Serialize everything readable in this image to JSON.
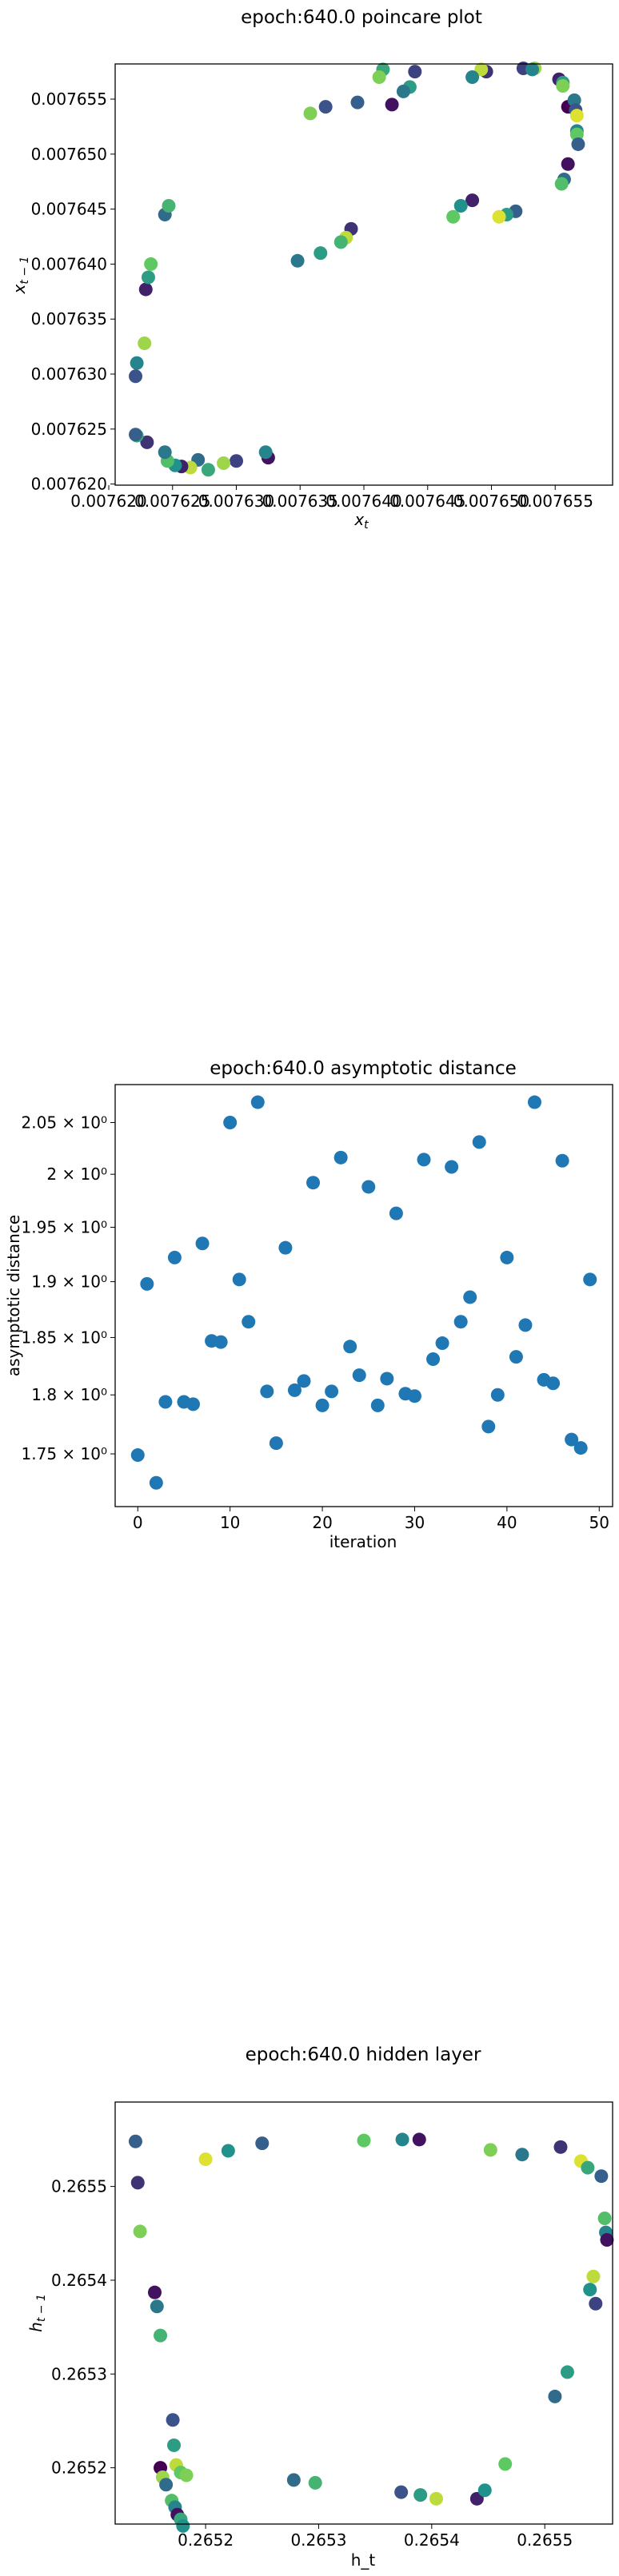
{
  "chart_data": [
    {
      "type": "scatter",
      "title": "epoch:640.0 poincare plot",
      "xlabel": "x_t",
      "ylabel": "x_{t-1}",
      "xlim": [
        0.0076205,
        0.0076595
      ],
      "ylim": [
        0.0076199,
        0.0076582
      ],
      "x_ticks": [
        0.00762,
        0.007625,
        0.00763,
        0.007635,
        0.00764,
        0.007645,
        0.00765,
        0.007655
      ],
      "x_tick_labels": [
        "0.007620",
        "0.007625",
        "0.007630",
        "0.007635",
        "0.007640",
        "0.007645",
        "0.007650",
        "0.007655"
      ],
      "y_ticks": [
        0.00762,
        0.007625,
        0.00763,
        0.007635,
        0.00764,
        0.007645,
        0.00765,
        0.007655
      ],
      "y_tick_labels": [
        "0.007620",
        "0.007625",
        "0.007630",
        "0.007635",
        "0.007640",
        "0.007645",
        "0.007650",
        "0.007655"
      ],
      "colormap": "viridis",
      "points": [
        {
          "x": 0.007656,
          "y": 0.0076543,
          "c": 0.0
        },
        {
          "x": 0.0076565,
          "y": 0.0076549,
          "c": 0.4
        },
        {
          "x": 0.0076566,
          "y": 0.007654,
          "c": 0.25
        },
        {
          "x": 0.0076567,
          "y": 0.0076535,
          "c": 0.95
        },
        {
          "x": 0.0076567,
          "y": 0.0076521,
          "c": 0.45
        },
        {
          "x": 0.0076567,
          "y": 0.0076518,
          "c": 0.75
        },
        {
          "x": 0.0076568,
          "y": 0.0076509,
          "c": 0.3
        },
        {
          "x": 0.007656,
          "y": 0.0076491,
          "c": 0.05
        },
        {
          "x": 0.0076557,
          "y": 0.0076477,
          "c": 0.35
        },
        {
          "x": 0.0076555,
          "y": 0.0076473,
          "c": 0.7
        },
        {
          "x": 0.0076553,
          "y": 0.0076568,
          "c": 0.1
        },
        {
          "x": 0.0076556,
          "y": 0.0076565,
          "c": 0.55
        },
        {
          "x": 0.0076556,
          "y": 0.0076562,
          "c": 0.8
        },
        {
          "x": 0.0076525,
          "y": 0.0076578,
          "c": 0.2
        },
        {
          "x": 0.0076534,
          "y": 0.0076578,
          "c": 0.85
        },
        {
          "x": 0.0076532,
          "y": 0.0076577,
          "c": 0.45
        },
        {
          "x": 0.0076519,
          "y": 0.0076448,
          "c": 0.3
        },
        {
          "x": 0.0076512,
          "y": 0.0076445,
          "c": 0.55
        },
        {
          "x": 0.0076506,
          "y": 0.0076443,
          "c": 0.95
        },
        {
          "x": 0.0076496,
          "y": 0.0076575,
          "c": 0.15
        },
        {
          "x": 0.0076492,
          "y": 0.0076577,
          "c": 0.9
        },
        {
          "x": 0.0076485,
          "y": 0.007657,
          "c": 0.45
        },
        {
          "x": 0.0076485,
          "y": 0.0076458,
          "c": 0.1
        },
        {
          "x": 0.0076476,
          "y": 0.0076453,
          "c": 0.5
        },
        {
          "x": 0.007647,
          "y": 0.0076443,
          "c": 0.75
        },
        {
          "x": 0.007644,
          "y": 0.0076575,
          "c": 0.2
        },
        {
          "x": 0.0076436,
          "y": 0.0076561,
          "c": 0.55
        },
        {
          "x": 0.0076431,
          "y": 0.0076557,
          "c": 0.4
        },
        {
          "x": 0.0076422,
          "y": 0.0076545,
          "c": 0.05
        },
        {
          "x": 0.0076415,
          "y": 0.0076577,
          "c": 0.6
        },
        {
          "x": 0.0076412,
          "y": 0.007657,
          "c": 0.8
        },
        {
          "x": 0.0076395,
          "y": 0.0076547,
          "c": 0.3
        },
        {
          "x": 0.007639,
          "y": 0.0076432,
          "c": 0.15
        },
        {
          "x": 0.0076386,
          "y": 0.0076424,
          "c": 0.9
        },
        {
          "x": 0.0076382,
          "y": 0.007642,
          "c": 0.65
        },
        {
          "x": 0.007637,
          "y": 0.0076543,
          "c": 0.25
        },
        {
          "x": 0.0076366,
          "y": 0.007641,
          "c": 0.55
        },
        {
          "x": 0.0076358,
          "y": 0.0076537,
          "c": 0.8
        },
        {
          "x": 0.0076348,
          "y": 0.0076403,
          "c": 0.4
        },
        {
          "x": 0.0076325,
          "y": 0.0076224,
          "c": 0.05
        },
        {
          "x": 0.0076323,
          "y": 0.0076229,
          "c": 0.45
        },
        {
          "x": 0.00763,
          "y": 0.0076221,
          "c": 0.2
        },
        {
          "x": 0.007629,
          "y": 0.0076219,
          "c": 0.85
        },
        {
          "x": 0.0076278,
          "y": 0.0076213,
          "c": 0.6
        },
        {
          "x": 0.007627,
          "y": 0.0076222,
          "c": 0.35
        },
        {
          "x": 0.0076264,
          "y": 0.0076215,
          "c": 0.9
        },
        {
          "x": 0.0076257,
          "y": 0.0076216,
          "c": 0.1
        },
        {
          "x": 0.0076252,
          "y": 0.0076217,
          "c": 0.5
        },
        {
          "x": 0.0076246,
          "y": 0.0076221,
          "c": 0.7
        },
        {
          "x": 0.0076244,
          "y": 0.0076229,
          "c": 0.4
        },
        {
          "x": 0.007623,
          "y": 0.0076238,
          "c": 0.15
        },
        {
          "x": 0.0076222,
          "y": 0.0076244,
          "c": 0.6
        },
        {
          "x": 0.0076221,
          "y": 0.0076245,
          "c": 0.3
        },
        {
          "x": 0.0076228,
          "y": 0.0076328,
          "c": 0.85
        },
        {
          "x": 0.0076222,
          "y": 0.007631,
          "c": 0.45
        },
        {
          "x": 0.0076221,
          "y": 0.0076298,
          "c": 0.25
        },
        {
          "x": 0.0076229,
          "y": 0.0076377,
          "c": 0.1
        },
        {
          "x": 0.0076231,
          "y": 0.0076388,
          "c": 0.55
        },
        {
          "x": 0.0076233,
          "y": 0.00764,
          "c": 0.75
        },
        {
          "x": 0.0076244,
          "y": 0.0076445,
          "c": 0.35
        },
        {
          "x": 0.0076247,
          "y": 0.0076453,
          "c": 0.65
        }
      ]
    },
    {
      "type": "scatter",
      "title": "epoch:640.0 asymptotic distance",
      "xlabel": "iteration",
      "ylabel": "asymptotic distance",
      "xlim": [
        -2.45,
        51.45
      ],
      "ylim": [
        1.7065,
        2.0875
      ],
      "y_scale": "log",
      "x_ticks": [
        0,
        10,
        20,
        30,
        40,
        50
      ],
      "x_tick_labels": [
        "0",
        "10",
        "20",
        "30",
        "40",
        "50"
      ],
      "y_ticks": [
        1.75,
        1.8,
        1.85,
        1.9,
        1.95,
        2.0,
        2.05
      ],
      "y_tick_labels": [
        "1.75 × 10⁰",
        "1.8 × 10⁰",
        "1.85 × 10⁰",
        "1.9 × 10⁰",
        "1.95 × 10⁰",
        "2 × 10⁰",
        "2.05 × 10⁰"
      ],
      "color": "#1f77b4",
      "x": [
        0,
        1,
        2,
        3,
        4,
        5,
        6,
        7,
        8,
        9,
        10,
        11,
        12,
        13,
        14,
        15,
        16,
        17,
        18,
        19,
        20,
        21,
        22,
        23,
        24,
        25,
        26,
        27,
        28,
        29,
        30,
        31,
        32,
        33,
        34,
        35,
        36,
        37,
        38,
        39,
        40,
        41,
        42,
        43,
        44,
        45,
        46,
        47,
        48,
        49
      ],
      "y": [
        1.749,
        1.898,
        1.726,
        1.794,
        1.922,
        1.794,
        1.792,
        1.935,
        1.847,
        1.846,
        2.05,
        1.902,
        1.864,
        2.07,
        1.803,
        1.759,
        1.931,
        1.804,
        1.812,
        1.992,
        1.791,
        1.803,
        2.016,
        1.842,
        1.817,
        1.988,
        1.791,
        1.814,
        1.963,
        1.801,
        1.799,
        2.014,
        1.831,
        1.845,
        2.007,
        1.864,
        1.886,
        2.031,
        1.773,
        1.8,
        1.922,
        1.833,
        1.861,
        2.07,
        1.813,
        1.81,
        2.013,
        1.762,
        1.755,
        1.902
      ]
    },
    {
      "type": "scatter",
      "title": "epoch:640.0 hidden layer",
      "xlabel": "h_t",
      "ylabel": "h_{t-1}",
      "xlim": [
        0.26512,
        0.26556
      ],
      "ylim": [
        0.26514,
        0.26559
      ],
      "x_ticks": [
        0.2652,
        0.2653,
        0.2654,
        0.2655
      ],
      "x_tick_labels": [
        "0.2652",
        "0.2653",
        "0.2654",
        "0.2655"
      ],
      "y_ticks": [
        0.2652,
        0.2653,
        0.2654,
        0.2655
      ],
      "y_tick_labels": [
        "0.2652",
        "0.2653",
        "0.2654",
        "0.2655"
      ],
      "colormap": "viridis",
      "points": [
        {
          "x": 0.265138,
          "y": 0.265548,
          "c": 0.3
        },
        {
          "x": 0.26514,
          "y": 0.265504,
          "c": 0.15
        },
        {
          "x": 0.265142,
          "y": 0.265452,
          "c": 0.8
        },
        {
          "x": 0.265155,
          "y": 0.265387,
          "c": 0.05
        },
        {
          "x": 0.265157,
          "y": 0.265372,
          "c": 0.4
        },
        {
          "x": 0.26516,
          "y": 0.265341,
          "c": 0.65
        },
        {
          "x": 0.265171,
          "y": 0.265251,
          "c": 0.25
        },
        {
          "x": 0.265172,
          "y": 0.265224,
          "c": 0.55
        },
        {
          "x": 0.265174,
          "y": 0.265203,
          "c": 0.9
        },
        {
          "x": 0.265178,
          "y": 0.265195,
          "c": 0.75
        },
        {
          "x": 0.26516,
          "y": 0.2652,
          "c": 0.0
        },
        {
          "x": 0.265162,
          "y": 0.26519,
          "c": 0.85
        },
        {
          "x": 0.265165,
          "y": 0.265182,
          "c": 0.35
        },
        {
          "x": 0.26517,
          "y": 0.265165,
          "c": 0.7
        },
        {
          "x": 0.265173,
          "y": 0.265158,
          "c": 0.45
        },
        {
          "x": 0.265175,
          "y": 0.26515,
          "c": 0.05
        },
        {
          "x": 0.265178,
          "y": 0.265145,
          "c": 0.6
        },
        {
          "x": 0.26518,
          "y": 0.265138,
          "c": 0.5
        },
        {
          "x": 0.265183,
          "y": 0.265192,
          "c": 0.8
        },
        {
          "x": 0.2652,
          "y": 0.265529,
          "c": 0.95
        },
        {
          "x": 0.26522,
          "y": 0.265538,
          "c": 0.5
        },
        {
          "x": 0.26525,
          "y": 0.265546,
          "c": 0.3
        },
        {
          "x": 0.265278,
          "y": 0.265187,
          "c": 0.35
        },
        {
          "x": 0.265297,
          "y": 0.265184,
          "c": 0.65
        },
        {
          "x": 0.26534,
          "y": 0.265549,
          "c": 0.75
        },
        {
          "x": 0.265373,
          "y": 0.265174,
          "c": 0.25
        },
        {
          "x": 0.265374,
          "y": 0.26555,
          "c": 0.45
        },
        {
          "x": 0.265389,
          "y": 0.26555,
          "c": 0.05
        },
        {
          "x": 0.26539,
          "y": 0.265171,
          "c": 0.55
        },
        {
          "x": 0.265404,
          "y": 0.265167,
          "c": 0.9
        },
        {
          "x": 0.26544,
          "y": 0.265167,
          "c": 0.1
        },
        {
          "x": 0.265447,
          "y": 0.265176,
          "c": 0.5
        },
        {
          "x": 0.265452,
          "y": 0.265539,
          "c": 0.8
        },
        {
          "x": 0.265465,
          "y": 0.265204,
          "c": 0.75
        },
        {
          "x": 0.26548,
          "y": 0.265534,
          "c": 0.4
        },
        {
          "x": 0.265509,
          "y": 0.265276,
          "c": 0.35
        },
        {
          "x": 0.265514,
          "y": 0.265542,
          "c": 0.15
        },
        {
          "x": 0.26552,
          "y": 0.265302,
          "c": 0.55
        },
        {
          "x": 0.265532,
          "y": 0.265527,
          "c": 0.95
        },
        {
          "x": 0.265538,
          "y": 0.26552,
          "c": 0.6
        },
        {
          "x": 0.26554,
          "y": 0.26539,
          "c": 0.5
        },
        {
          "x": 0.265543,
          "y": 0.265404,
          "c": 0.9
        },
        {
          "x": 0.265545,
          "y": 0.265375,
          "c": 0.2
        },
        {
          "x": 0.26555,
          "y": 0.265511,
          "c": 0.3
        },
        {
          "x": 0.265553,
          "y": 0.265466,
          "c": 0.7
        },
        {
          "x": 0.265554,
          "y": 0.265451,
          "c": 0.45
        },
        {
          "x": 0.265555,
          "y": 0.265443,
          "c": 0.05
        }
      ]
    }
  ]
}
